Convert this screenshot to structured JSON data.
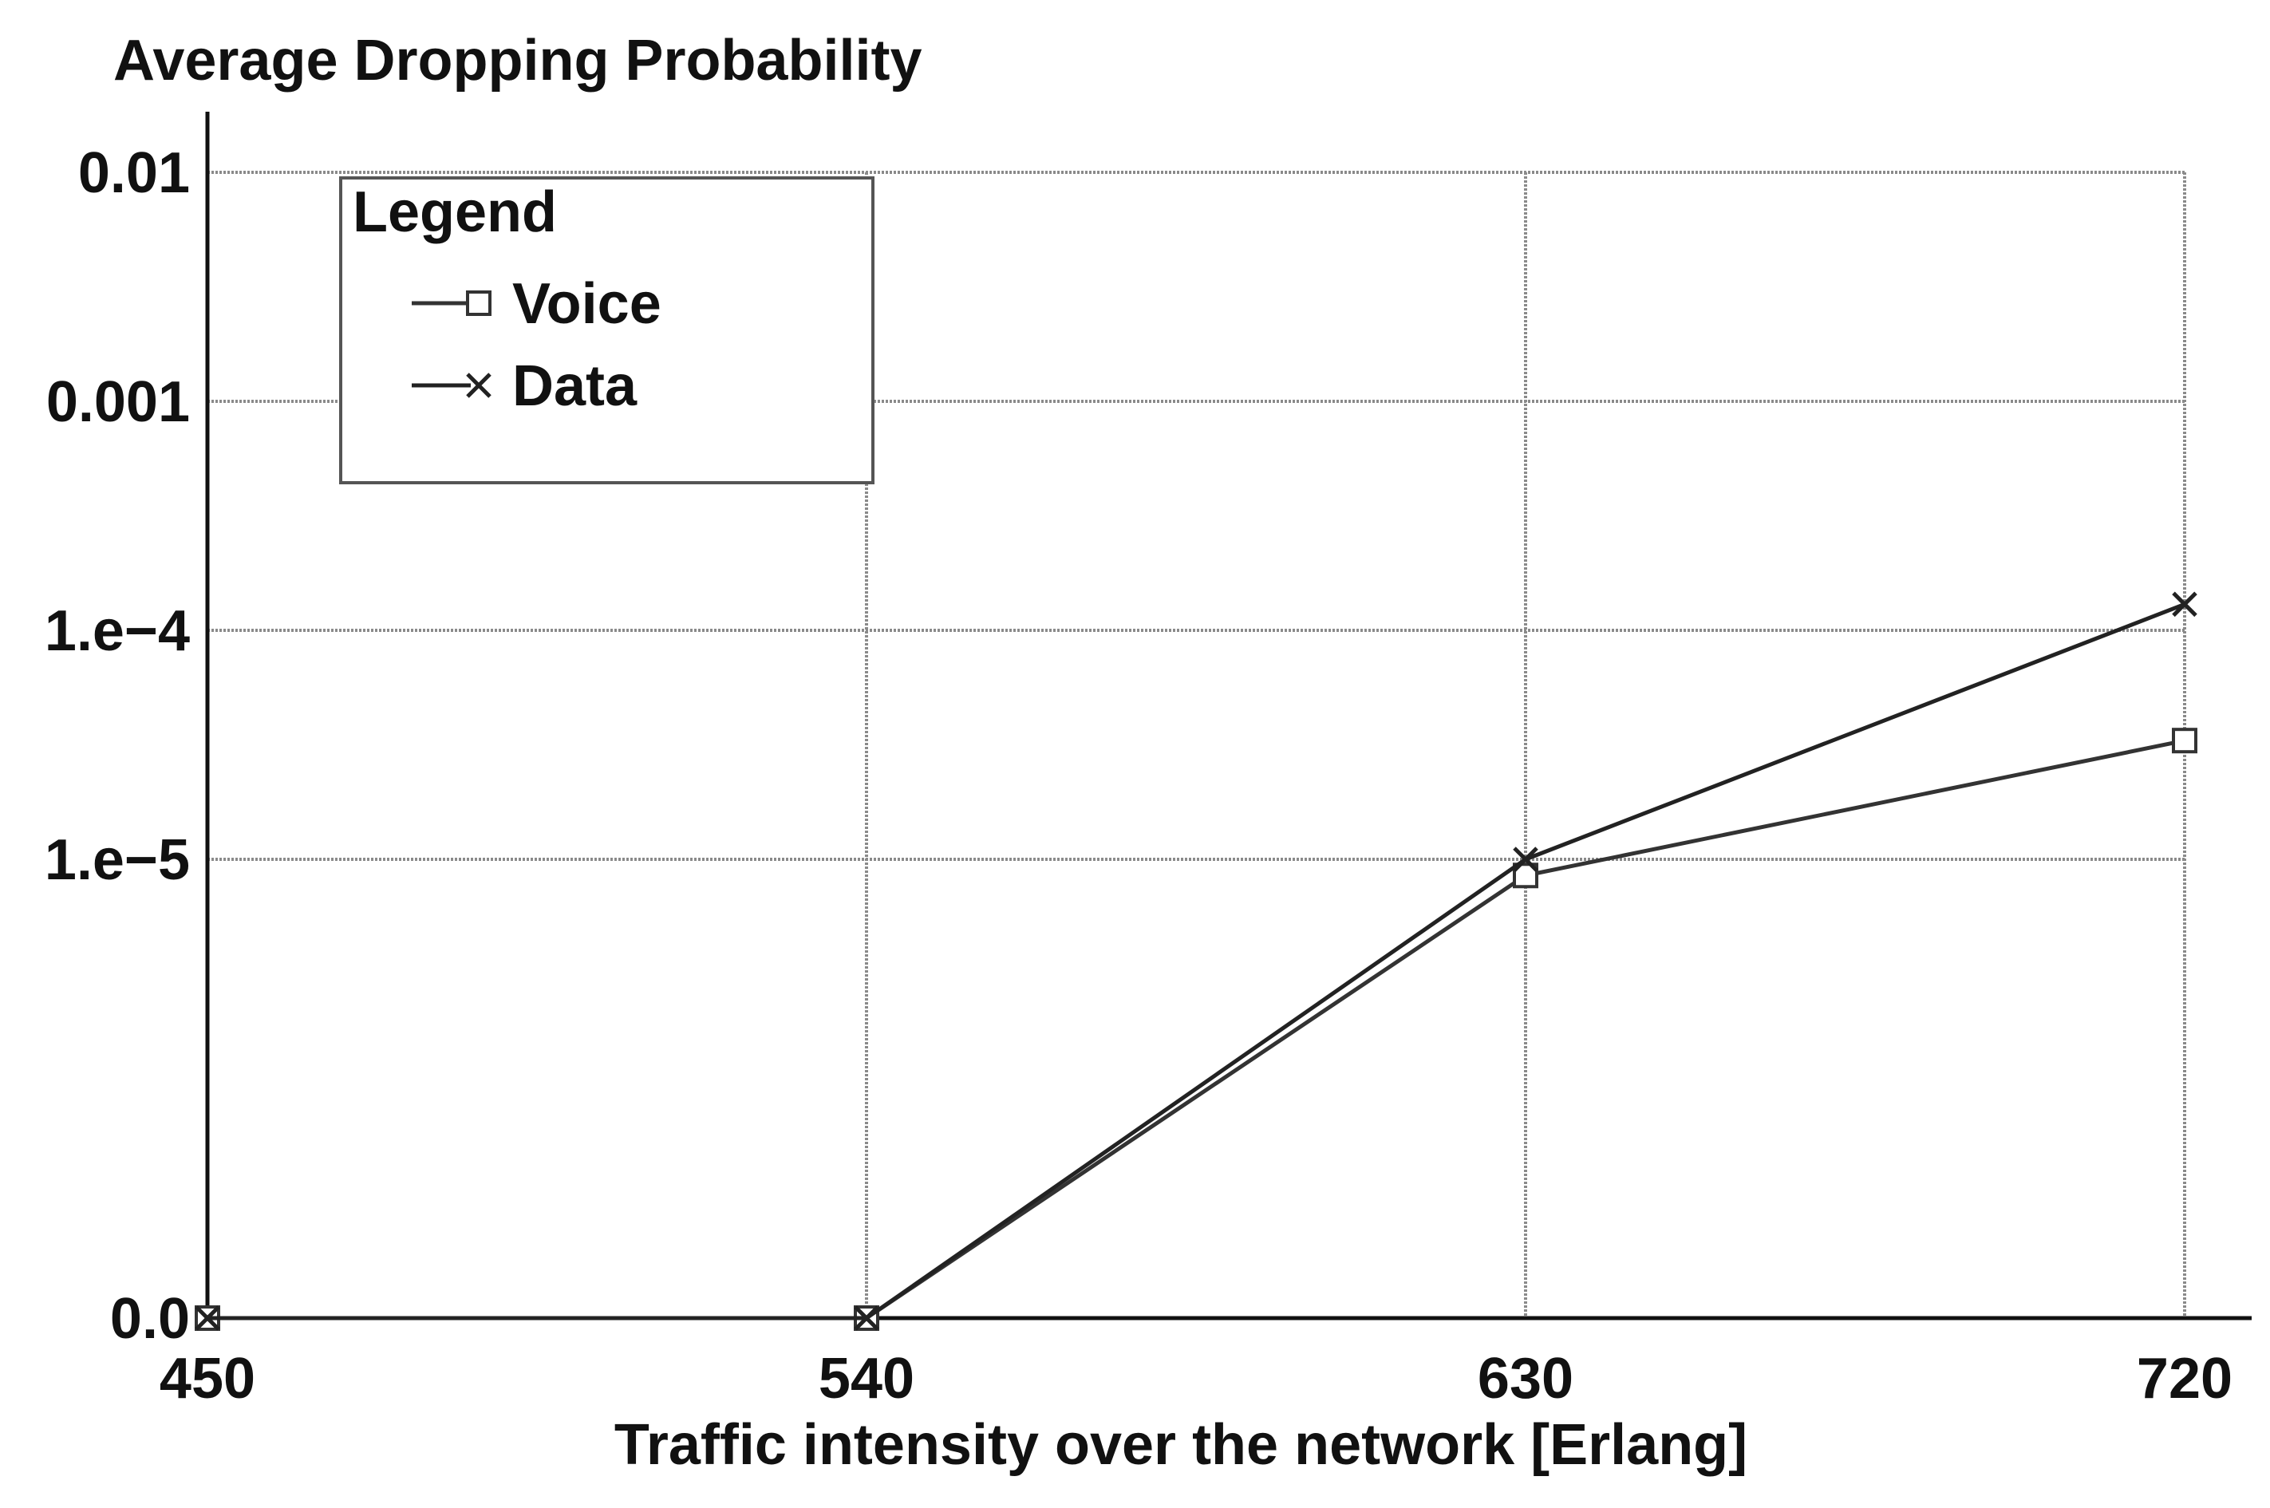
{
  "chart_data": {
    "type": "line",
    "title": "Average Dropping Probability",
    "xlabel": "Traffic intensity over the network [Erlang]",
    "ylabel": "",
    "x": [
      450,
      540,
      630,
      720
    ],
    "x_tick_labels": [
      "450",
      "540",
      "630",
      "720"
    ],
    "y_scale": "log (with 0 at bottom)",
    "y_tick_values": [
      0,
      1e-05,
      0.0001,
      0.001,
      0.01
    ],
    "y_tick_labels": [
      "0.0",
      "1.e−5",
      "1.e−4",
      "0.001",
      "0.01"
    ],
    "xlim": [
      450,
      720
    ],
    "grid": true,
    "legend": {
      "title": "Legend",
      "placement": "top-left"
    },
    "series": [
      {
        "name": "Voice",
        "marker": "square",
        "color": "#333333",
        "values": [
          0,
          0,
          8.5e-06,
          3.3e-05
        ]
      },
      {
        "name": "Data",
        "marker": "x",
        "color": "#222222",
        "values": [
          0,
          0,
          1e-05,
          0.00013
        ]
      }
    ]
  }
}
